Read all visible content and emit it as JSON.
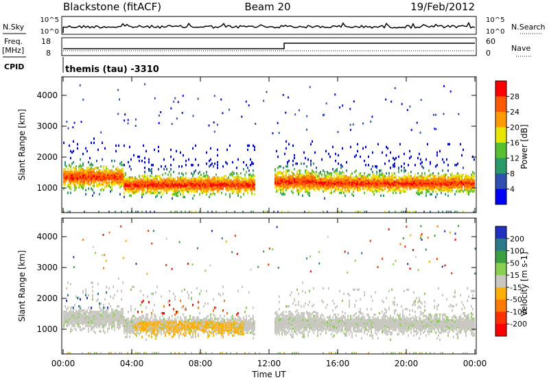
{
  "header": {
    "station": "Blackstone (fitACF)",
    "beam": "Beam 20",
    "date": "19/Feb/2012"
  },
  "top_panels": {
    "nsky_label": "N.Sky",
    "nsearch_label": "N.Search",
    "freq_label_1": "Freq.",
    "freq_label_2": "[MHz]",
    "nave_label": "Nave",
    "cpid_label": "CPID",
    "cpid_text": "themis (tau) -3310",
    "log_ticks": [
      "10^5",
      "10^0"
    ],
    "freq_ticks": [
      "18",
      "8"
    ],
    "nave_ticks": [
      "60",
      "0"
    ]
  },
  "chart_data": [
    {
      "type": "heatmap",
      "panel": "power",
      "ylabel": "Slant Range [km]",
      "ylim": [
        200,
        4600
      ],
      "yticks": [
        "4000",
        "3000",
        "2000",
        "1000"
      ],
      "colorbar_label": "Power [dB]",
      "colorbar_ticks": [
        "28",
        "24",
        "20",
        "16",
        "12",
        "8",
        "4"
      ],
      "colorbar_colors": [
        "#ff0000",
        "#ff5a00",
        "#ff9a00",
        "#e6e600",
        "#58c030",
        "#2a9a6a",
        "#3050b0",
        "#0000ff"
      ],
      "bands": [
        {
          "t0": 0.0,
          "t1": 3.5,
          "r_center": 1400,
          "r_spread": 260
        },
        {
          "t0": 3.5,
          "t1": 11.2,
          "r_center": 1150,
          "r_spread": 230
        },
        {
          "t0": 12.3,
          "t1": 14.7,
          "r_center": 1250,
          "r_spread": 260
        },
        {
          "t0": 14.7,
          "t1": 24.0,
          "r_center": 1200,
          "r_spread": 220
        }
      ]
    },
    {
      "type": "heatmap",
      "panel": "velocity",
      "ylabel": "Slant Range [km]",
      "xlabel": "Time UT",
      "xlim": [
        0,
        24
      ],
      "xticks": [
        "00:00",
        "04:00",
        "08:00",
        "12:00",
        "16:00",
        "20:00",
        "00:00"
      ],
      "ylim": [
        200,
        4600
      ],
      "yticks": [
        "4000",
        "3000",
        "2000",
        "1000"
      ],
      "colorbar_label": "Velocity [m s-1]",
      "colorbar_ticks": [
        "200",
        "100",
        "50",
        "15",
        "-15",
        "-50",
        "-100",
        "-200"
      ],
      "colorbar_colors": [
        "#2030c0",
        "#2a7a8a",
        "#3aa040",
        "#8ad050",
        "#c8c8c0",
        "#ffb000",
        "#ff7a00",
        "#ff3000",
        "#ff0000"
      ]
    }
  ]
}
